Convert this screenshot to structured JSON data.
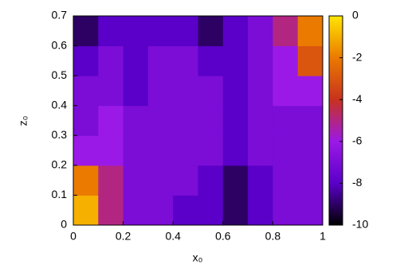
{
  "chart_data": {
    "type": "heatmap",
    "xlabel": "x₀",
    "ylabel": "z₀",
    "xlim": [
      0,
      1
    ],
    "xticks": [
      0,
      0.2,
      0.4,
      0.6,
      0.8,
      1
    ],
    "ylim": [
      0,
      0.7
    ],
    "yticks": [
      0,
      0.1,
      0.2,
      0.3,
      0.4,
      0.5,
      0.6,
      0.7
    ],
    "xbins": [
      0,
      0.1,
      0.2,
      0.3,
      0.4,
      0.5,
      0.6,
      0.7,
      0.8,
      0.9,
      1
    ],
    "ybins": [
      0,
      0.1,
      0.2,
      0.3,
      0.4,
      0.5,
      0.6,
      0.7
    ],
    "values": [
      [
        -1,
        -5,
        -7,
        -7,
        -8,
        -8,
        -9,
        -8,
        -7,
        -7
      ],
      [
        -2,
        -5,
        -7,
        -7,
        -7,
        -8,
        -9,
        -8,
        -7,
        -7
      ],
      [
        -6,
        -6,
        -7,
        -7,
        -7,
        -7,
        -8,
        -7,
        -7,
        -7
      ],
      [
        -7,
        -6,
        -7,
        -7,
        -7,
        -7,
        -8,
        -7,
        -7,
        -7
      ],
      [
        -7,
        -7,
        -8,
        -7,
        -7,
        -7,
        -8,
        -7,
        -6,
        -6
      ],
      [
        -8,
        -7,
        -8,
        -7,
        -7,
        -8,
        -8,
        -7,
        -6,
        -3
      ],
      [
        -9,
        -8,
        -8,
        -8,
        -8,
        -9,
        -8,
        -7,
        -5,
        -2
      ]
    ],
    "clim": [
      -10,
      0
    ],
    "cticks": [
      0,
      -2,
      -4,
      -6,
      -8,
      -10
    ],
    "colormap": [
      "#000000",
      "#5a00c8",
      "#9b19e6",
      "#c8321e",
      "#eb7a00",
      "#ffe600"
    ]
  }
}
